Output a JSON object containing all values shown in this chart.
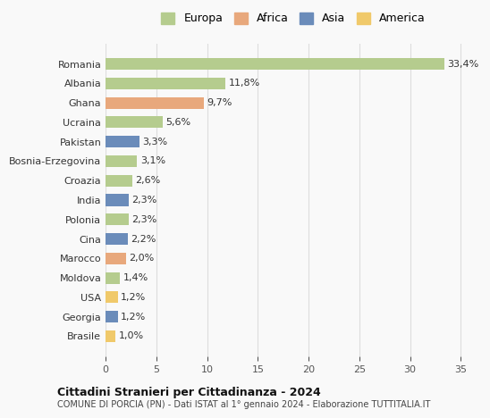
{
  "countries": [
    "Brasile",
    "Georgia",
    "USA",
    "Moldova",
    "Marocco",
    "Cina",
    "Polonia",
    "India",
    "Croazia",
    "Bosnia-Erzegovina",
    "Pakistan",
    "Ucraina",
    "Ghana",
    "Albania",
    "Romania"
  ],
  "values": [
    1.0,
    1.2,
    1.2,
    1.4,
    2.0,
    2.2,
    2.3,
    2.3,
    2.6,
    3.1,
    3.3,
    5.6,
    9.7,
    11.8,
    33.4
  ],
  "labels": [
    "1,0%",
    "1,2%",
    "1,2%",
    "1,4%",
    "2,0%",
    "2,2%",
    "2,3%",
    "2,3%",
    "2,6%",
    "3,1%",
    "3,3%",
    "5,6%",
    "9,7%",
    "11,8%",
    "33,4%"
  ],
  "continent": [
    "America",
    "Asia",
    "America",
    "Europa",
    "Africa",
    "Asia",
    "Europa",
    "Asia",
    "Europa",
    "Europa",
    "Asia",
    "Europa",
    "Africa",
    "Europa",
    "Europa"
  ],
  "colors": {
    "Europa": "#b5cc8e",
    "Africa": "#e8a87c",
    "Asia": "#6b8cba",
    "America": "#f0c96a"
  },
  "legend_order": [
    "Europa",
    "Africa",
    "Asia",
    "America"
  ],
  "title": "Cittadini Stranieri per Cittadinanza - 2024",
  "subtitle": "COMUNE DI PORCIA (PN) - Dati ISTAT al 1° gennaio 2024 - Elaborazione TUTTITALIA.IT",
  "xlim": [
    0,
    37
  ],
  "xticks": [
    0,
    5,
    10,
    15,
    20,
    25,
    30,
    35
  ],
  "background_color": "#f9f9f9",
  "grid_color": "#dddddd"
}
